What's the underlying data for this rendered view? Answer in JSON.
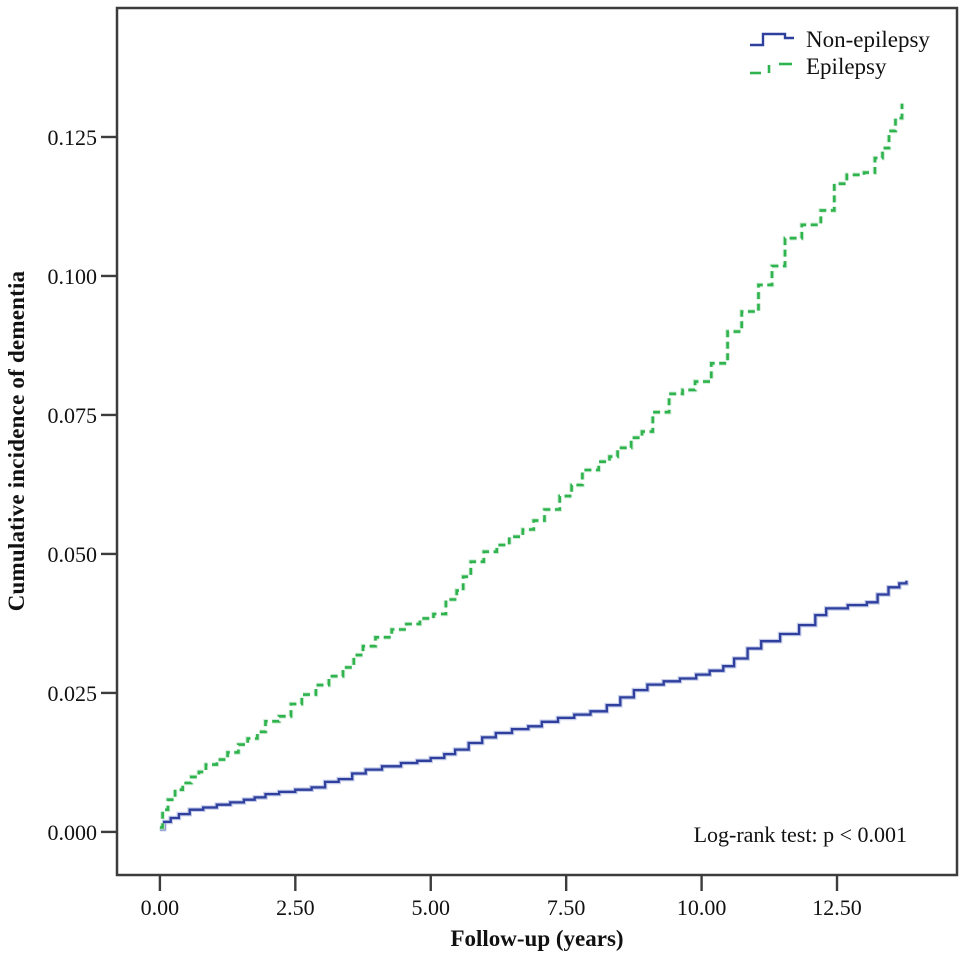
{
  "chart_data": {
    "type": "line",
    "subtype": "kaplan-meier-cumulative-incidence-step",
    "title": "",
    "xlabel": "Follow-up (years)",
    "ylabel": "Cumulative incidence of dementia",
    "annotation": "Log-rank test: p < 0.001",
    "grid": false,
    "legend_position": "top-right-inside",
    "xlim": [
      -0.792,
      14.715
    ],
    "ylim": [
      -0.00775,
      0.1482
    ],
    "x_ticks": {
      "values": [
        0,
        2.5,
        5,
        7.5,
        10,
        12.5
      ],
      "labels": [
        "0.00",
        "2.50",
        "5.00",
        "7.50",
        "10.00",
        "12.50"
      ]
    },
    "y_ticks": {
      "values": [
        0,
        0.025,
        0.05,
        0.075,
        0.1,
        0.125
      ],
      "labels": [
        "0.000",
        "0.025",
        "0.050",
        "0.075",
        "0.100",
        "0.125"
      ]
    },
    "axis_color": "#3c3c3c",
    "series": [
      {
        "name": "Non-epilepsy",
        "color": "#2e3f9e",
        "halo_color": "#c3cbe8",
        "style": "solid",
        "points": [
          [
            0.0,
            0.0005
          ],
          [
            0.08,
            0.0018
          ],
          [
            0.2,
            0.0025
          ],
          [
            0.35,
            0.0032
          ],
          [
            0.55,
            0.004
          ],
          [
            0.8,
            0.0044
          ],
          [
            1.05,
            0.0049
          ],
          [
            1.3,
            0.0053
          ],
          [
            1.55,
            0.0058
          ],
          [
            1.75,
            0.0062
          ],
          [
            1.95,
            0.0068
          ],
          [
            2.2,
            0.0072
          ],
          [
            2.5,
            0.0076
          ],
          [
            2.8,
            0.008
          ],
          [
            3.05,
            0.009
          ],
          [
            3.3,
            0.0095
          ],
          [
            3.55,
            0.0105
          ],
          [
            3.8,
            0.0112
          ],
          [
            4.1,
            0.0118
          ],
          [
            4.45,
            0.0124
          ],
          [
            4.75,
            0.0128
          ],
          [
            5.0,
            0.0133
          ],
          [
            5.25,
            0.014
          ],
          [
            5.45,
            0.0148
          ],
          [
            5.7,
            0.016
          ],
          [
            5.95,
            0.017
          ],
          [
            6.2,
            0.0178
          ],
          [
            6.5,
            0.0185
          ],
          [
            6.8,
            0.019
          ],
          [
            7.05,
            0.0198
          ],
          [
            7.35,
            0.0205
          ],
          [
            7.65,
            0.0211
          ],
          [
            7.95,
            0.0217
          ],
          [
            8.25,
            0.0228
          ],
          [
            8.5,
            0.0242
          ],
          [
            8.75,
            0.0255
          ],
          [
            9.0,
            0.0265
          ],
          [
            9.3,
            0.0271
          ],
          [
            9.6,
            0.0276
          ],
          [
            9.9,
            0.0283
          ],
          [
            10.15,
            0.029
          ],
          [
            10.4,
            0.0298
          ],
          [
            10.6,
            0.0312
          ],
          [
            10.85,
            0.033
          ],
          [
            11.1,
            0.0343
          ],
          [
            11.45,
            0.0356
          ],
          [
            11.8,
            0.0372
          ],
          [
            12.1,
            0.039
          ],
          [
            12.3,
            0.0402
          ],
          [
            12.7,
            0.0408
          ],
          [
            13.05,
            0.0413
          ],
          [
            13.25,
            0.0427
          ],
          [
            13.45,
            0.044
          ],
          [
            13.65,
            0.0447
          ],
          [
            13.78,
            0.0452
          ]
        ]
      },
      {
        "name": "Epilepsy",
        "color": "#2eb34d",
        "halo_color": "#cdebd4",
        "style": "dashed",
        "points": [
          [
            0.0,
            0.0008
          ],
          [
            0.05,
            0.004
          ],
          [
            0.15,
            0.0058
          ],
          [
            0.28,
            0.0076
          ],
          [
            0.42,
            0.0088
          ],
          [
            0.58,
            0.0099
          ],
          [
            0.72,
            0.0108
          ],
          [
            0.85,
            0.0121
          ],
          [
            1.05,
            0.013
          ],
          [
            1.25,
            0.0143
          ],
          [
            1.45,
            0.0157
          ],
          [
            1.62,
            0.0168
          ],
          [
            1.8,
            0.018
          ],
          [
            1.95,
            0.0199
          ],
          [
            2.2,
            0.0208
          ],
          [
            2.42,
            0.023
          ],
          [
            2.62,
            0.0247
          ],
          [
            2.88,
            0.0264
          ],
          [
            3.12,
            0.028
          ],
          [
            3.38,
            0.0296
          ],
          [
            3.58,
            0.0318
          ],
          [
            3.75,
            0.0334
          ],
          [
            3.98,
            0.035
          ],
          [
            4.28,
            0.0364
          ],
          [
            4.55,
            0.0374
          ],
          [
            4.8,
            0.0384
          ],
          [
            5.05,
            0.0392
          ],
          [
            5.28,
            0.0418
          ],
          [
            5.48,
            0.0434
          ],
          [
            5.6,
            0.0459
          ],
          [
            5.74,
            0.0486
          ],
          [
            5.98,
            0.0504
          ],
          [
            6.22,
            0.0516
          ],
          [
            6.45,
            0.0531
          ],
          [
            6.7,
            0.0544
          ],
          [
            6.9,
            0.056
          ],
          [
            7.1,
            0.058
          ],
          [
            7.38,
            0.0604
          ],
          [
            7.6,
            0.0624
          ],
          [
            7.8,
            0.0651
          ],
          [
            8.1,
            0.0666
          ],
          [
            8.3,
            0.0675
          ],
          [
            8.45,
            0.0691
          ],
          [
            8.7,
            0.0709
          ],
          [
            8.9,
            0.072
          ],
          [
            9.1,
            0.0755
          ],
          [
            9.4,
            0.0788
          ],
          [
            9.65,
            0.0795
          ],
          [
            9.88,
            0.081
          ],
          [
            10.18,
            0.0843
          ],
          [
            10.48,
            0.09
          ],
          [
            10.74,
            0.0936
          ],
          [
            11.05,
            0.0984
          ],
          [
            11.3,
            0.1018
          ],
          [
            11.54,
            0.1068
          ],
          [
            11.85,
            0.1092
          ],
          [
            12.2,
            0.1118
          ],
          [
            12.45,
            0.1166
          ],
          [
            12.68,
            0.1182
          ],
          [
            13.0,
            0.1186
          ],
          [
            13.2,
            0.1212
          ],
          [
            13.34,
            0.123
          ],
          [
            13.46,
            0.1261
          ],
          [
            13.58,
            0.1284
          ],
          [
            13.7,
            0.131
          ]
        ]
      }
    ]
  }
}
